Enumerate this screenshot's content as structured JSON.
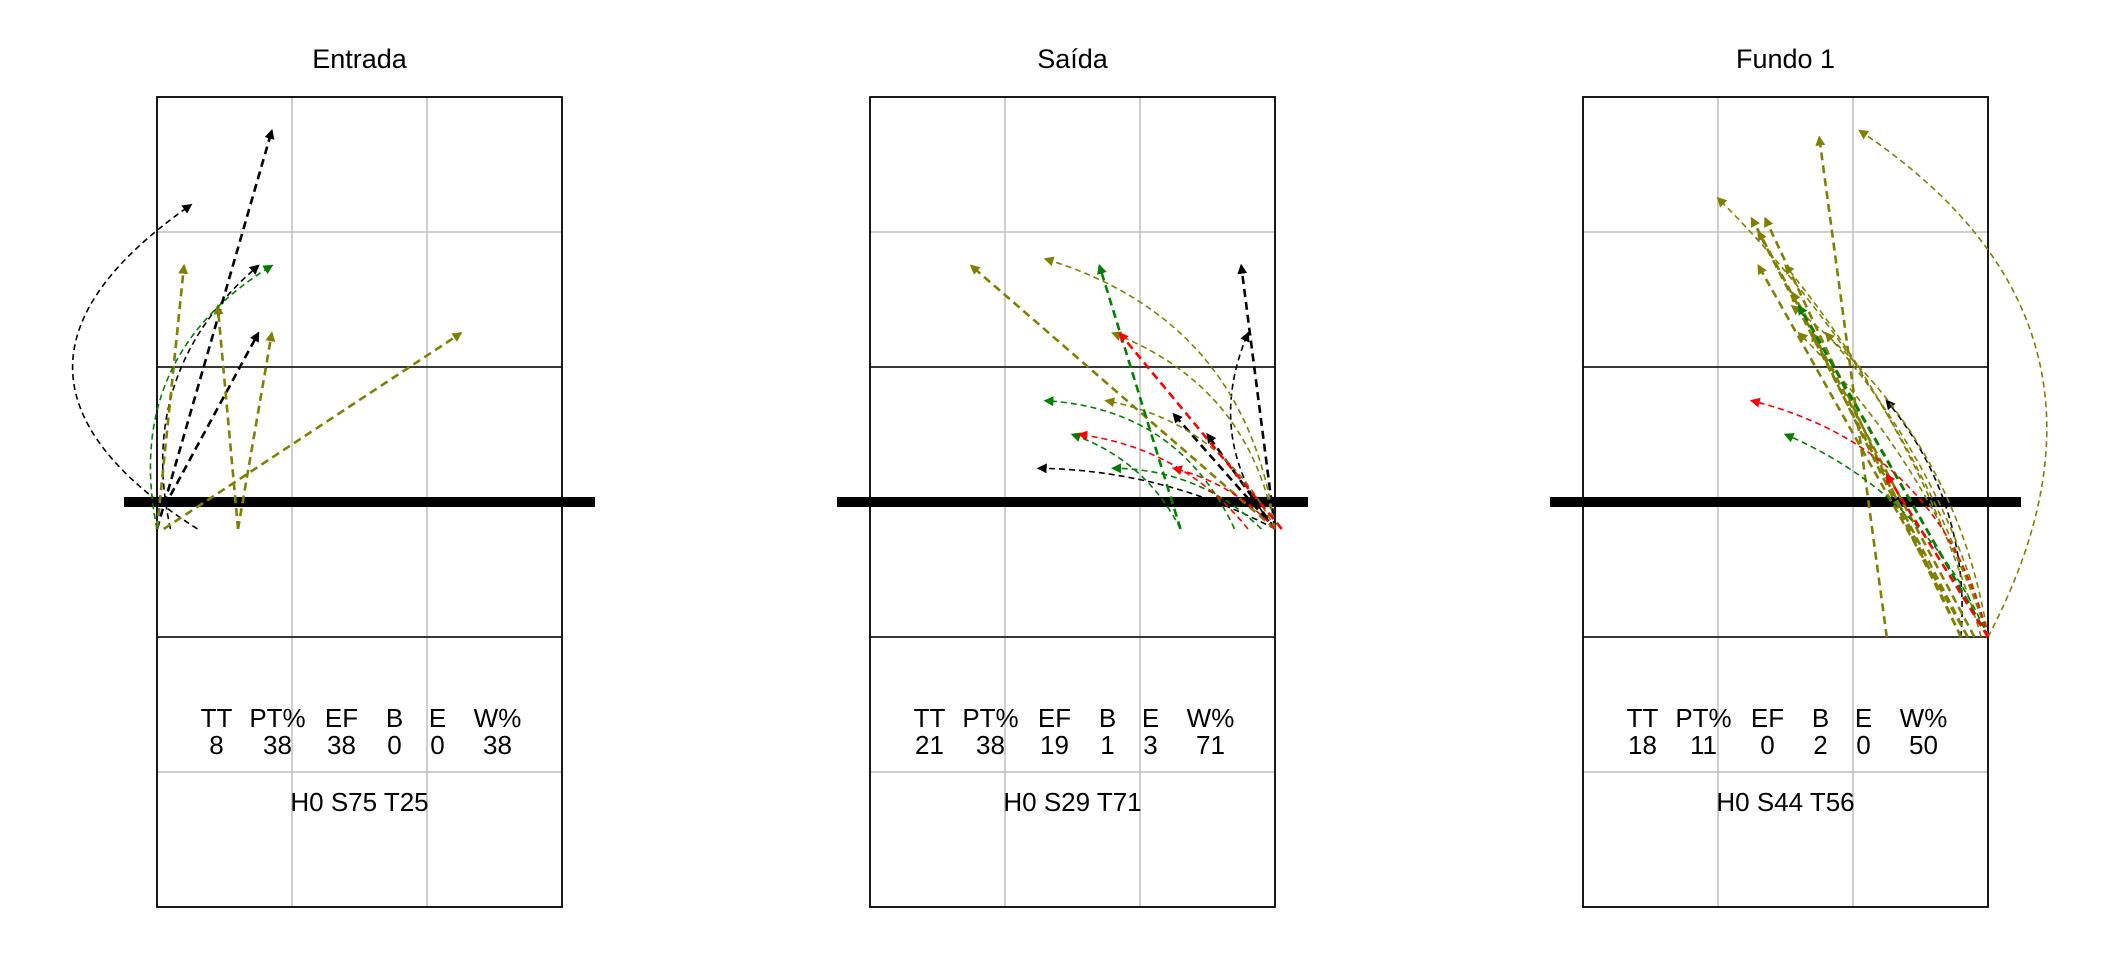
{
  "colors": {
    "black": "#000000",
    "olive": "#808000",
    "green": "#008000",
    "red": "#ff0000",
    "grid": "#bebebe"
  },
  "court": {
    "x_range": [
      0.5,
      3.5
    ],
    "y_range": [
      0.5,
      6.5
    ],
    "net_y": 3.5,
    "attack_lines_y": [
      2.5,
      4.5
    ]
  },
  "panels": [
    {
      "title": "Entrada",
      "stats_header": [
        "TT",
        "PT%",
        "EF",
        "B",
        "E",
        "W%"
      ],
      "stats_values": [
        "8",
        "38",
        "38",
        "0",
        "0",
        "38"
      ],
      "summary": "H0 S75 T25",
      "arrows": [
        {
          "from": [
            0.5,
            3.3
          ],
          "to": [
            1.35,
            6.25
          ],
          "color": "black",
          "bend": 0
        },
        {
          "from": [
            0.8,
            3.3
          ],
          "to": [
            0.75,
            5.7
          ],
          "color": "black",
          "bend": -0.75
        },
        {
          "from": [
            0.6,
            3.55
          ],
          "to": [
            1.25,
            4.75
          ],
          "color": "black",
          "bend": 0
        },
        {
          "from": [
            0.6,
            3.3
          ],
          "to": [
            1.25,
            5.25
          ],
          "color": "black",
          "bend": -0.3
        },
        {
          "from": [
            0.5,
            3.3
          ],
          "to": [
            0.7,
            5.25
          ],
          "color": "olive",
          "bend": 0
        },
        {
          "from": [
            0.55,
            3.3
          ],
          "to": [
            2.75,
            4.75
          ],
          "color": "olive",
          "bend": 0
        },
        {
          "from": [
            1.1,
            3.3
          ],
          "to": [
            1.35,
            4.75
          ],
          "color": "olive",
          "bend": 0
        },
        {
          "from": [
            1.1,
            3.3
          ],
          "to": [
            0.95,
            4.95
          ],
          "color": "olive",
          "bend": 0
        },
        {
          "from": [
            0.5,
            3.3
          ],
          "to": [
            1.35,
            5.25
          ],
          "color": "green",
          "bend": -0.35
        }
      ]
    },
    {
      "title": "Saída",
      "stats_header": [
        "TT",
        "PT%",
        "EF",
        "B",
        "E",
        "W%"
      ],
      "stats_values": [
        "21",
        "38",
        "19",
        "1",
        "3",
        "71"
      ],
      "summary": "H0 S29 T71",
      "arrows": [
        {
          "from": [
            3.5,
            3.3
          ],
          "to": [
            3.25,
            5.25
          ],
          "color": "black",
          "bend": 0
        },
        {
          "from": [
            3.5,
            3.3
          ],
          "to": [
            3.3,
            4.75
          ],
          "color": "black",
          "bend": -0.3
        },
        {
          "from": [
            3.5,
            3.3
          ],
          "to": [
            1.75,
            3.75
          ],
          "color": "black",
          "bend": 0.12
        },
        {
          "from": [
            3.5,
            3.3
          ],
          "to": [
            2.75,
            4.15
          ],
          "color": "black",
          "bend": 0
        },
        {
          "from": [
            3.5,
            3.3
          ],
          "to": [
            3.0,
            4.0
          ],
          "color": "black",
          "bend": 0
        },
        {
          "from": [
            3.5,
            3.3
          ],
          "to": [
            1.25,
            5.25
          ],
          "color": "olive",
          "bend": 0
        },
        {
          "from": [
            3.5,
            3.3
          ],
          "to": [
            1.8,
            5.3
          ],
          "color": "olive",
          "bend": 0.32
        },
        {
          "from": [
            3.5,
            3.3
          ],
          "to": [
            2.3,
            4.75
          ],
          "color": "olive",
          "bend": 0.28
        },
        {
          "from": [
            3.5,
            3.3
          ],
          "to": [
            2.25,
            4.25
          ],
          "color": "olive",
          "bend": 0.25
        },
        {
          "from": [
            2.8,
            3.3
          ],
          "to": [
            2.2,
            5.25
          ],
          "color": "green",
          "bend": 0
        },
        {
          "from": [
            3.2,
            3.3
          ],
          "to": [
            1.8,
            4.25
          ],
          "color": "green",
          "bend": 0.3
        },
        {
          "from": [
            3.4,
            3.3
          ],
          "to": [
            2.3,
            3.75
          ],
          "color": "green",
          "bend": 0.2
        },
        {
          "from": [
            2.8,
            3.3
          ],
          "to": [
            2.0,
            4.0
          ],
          "color": "green",
          "bend": 0.2
        },
        {
          "from": [
            3.55,
            3.3
          ],
          "to": [
            2.35,
            4.75
          ],
          "color": "red",
          "bend": 0
        },
        {
          "from": [
            3.3,
            3.3
          ],
          "to": [
            2.05,
            4.0
          ],
          "color": "red",
          "bend": 0.2
        },
        {
          "from": [
            3.5,
            3.3
          ],
          "to": [
            2.75,
            3.75
          ],
          "color": "red",
          "bend": 0.15
        }
      ]
    },
    {
      "title": "Fundo 1",
      "stats_header": [
        "TT",
        "PT%",
        "EF",
        "B",
        "E",
        "W%"
      ],
      "stats_values": [
        "18",
        "11",
        "0",
        "2",
        "0",
        "50"
      ],
      "summary": "H0 S44 T56",
      "arrows": [
        {
          "from": [
            3.3,
            2.5
          ],
          "to": [
            2.75,
            4.25
          ],
          "color": "black",
          "bend": 0.2
        },
        {
          "from": [
            2.75,
            2.5
          ],
          "to": [
            2.25,
            6.2
          ],
          "color": "olive",
          "bend": 0
        },
        {
          "from": [
            3.5,
            2.5
          ],
          "to": [
            1.5,
            5.75
          ],
          "color": "olive",
          "bend": 0.12
        },
        {
          "from": [
            3.4,
            2.5
          ],
          "to": [
            1.75,
            5.6
          ],
          "color": "olive",
          "bend": 0
        },
        {
          "from": [
            3.3,
            2.5
          ],
          "to": [
            1.85,
            5.6
          ],
          "color": "olive",
          "bend": 0
        },
        {
          "from": [
            3.35,
            2.5
          ],
          "to": [
            1.8,
            5.5
          ],
          "color": "olive",
          "bend": 0
        },
        {
          "from": [
            3.45,
            2.5
          ],
          "to": [
            2.0,
            5.25
          ],
          "color": "olive",
          "bend": 0.1
        },
        {
          "from": [
            3.5,
            2.5
          ],
          "to": [
            2.05,
            5.05
          ],
          "color": "olive",
          "bend": 0
        },
        {
          "from": [
            3.35,
            2.5
          ],
          "to": [
            1.8,
            5.25
          ],
          "color": "olive",
          "bend": 0
        },
        {
          "from": [
            3.5,
            2.5
          ],
          "to": [
            2.1,
            4.75
          ],
          "color": "olive",
          "bend": 0.12
        },
        {
          "from": [
            3.5,
            2.5
          ],
          "to": [
            2.3,
            4.75
          ],
          "color": "olive",
          "bend": 0.12
        },
        {
          "from": [
            3.3,
            2.5
          ],
          "to": [
            2.2,
            4.75
          ],
          "color": "olive",
          "bend": 0
        },
        {
          "from": [
            3.5,
            2.5
          ],
          "to": [
            2.05,
            4.95
          ],
          "color": "olive",
          "bend": 0.2
        },
        {
          "from": [
            3.5,
            2.5
          ],
          "to": [
            2.55,
            6.25
          ],
          "color": "olive",
          "bend": 0.45
        },
        {
          "from": [
            3.5,
            2.5
          ],
          "to": [
            2.1,
            4.95
          ],
          "color": "green",
          "bend": 0
        },
        {
          "from": [
            3.5,
            2.5
          ],
          "to": [
            2.0,
            4.0
          ],
          "color": "green",
          "bend": 0.2
        },
        {
          "from": [
            3.5,
            2.5
          ],
          "to": [
            1.75,
            4.25
          ],
          "color": "red",
          "bend": 0.3
        },
        {
          "from": [
            3.5,
            2.5
          ],
          "to": [
            2.75,
            3.7
          ],
          "color": "red",
          "bend": 0
        }
      ]
    }
  ]
}
